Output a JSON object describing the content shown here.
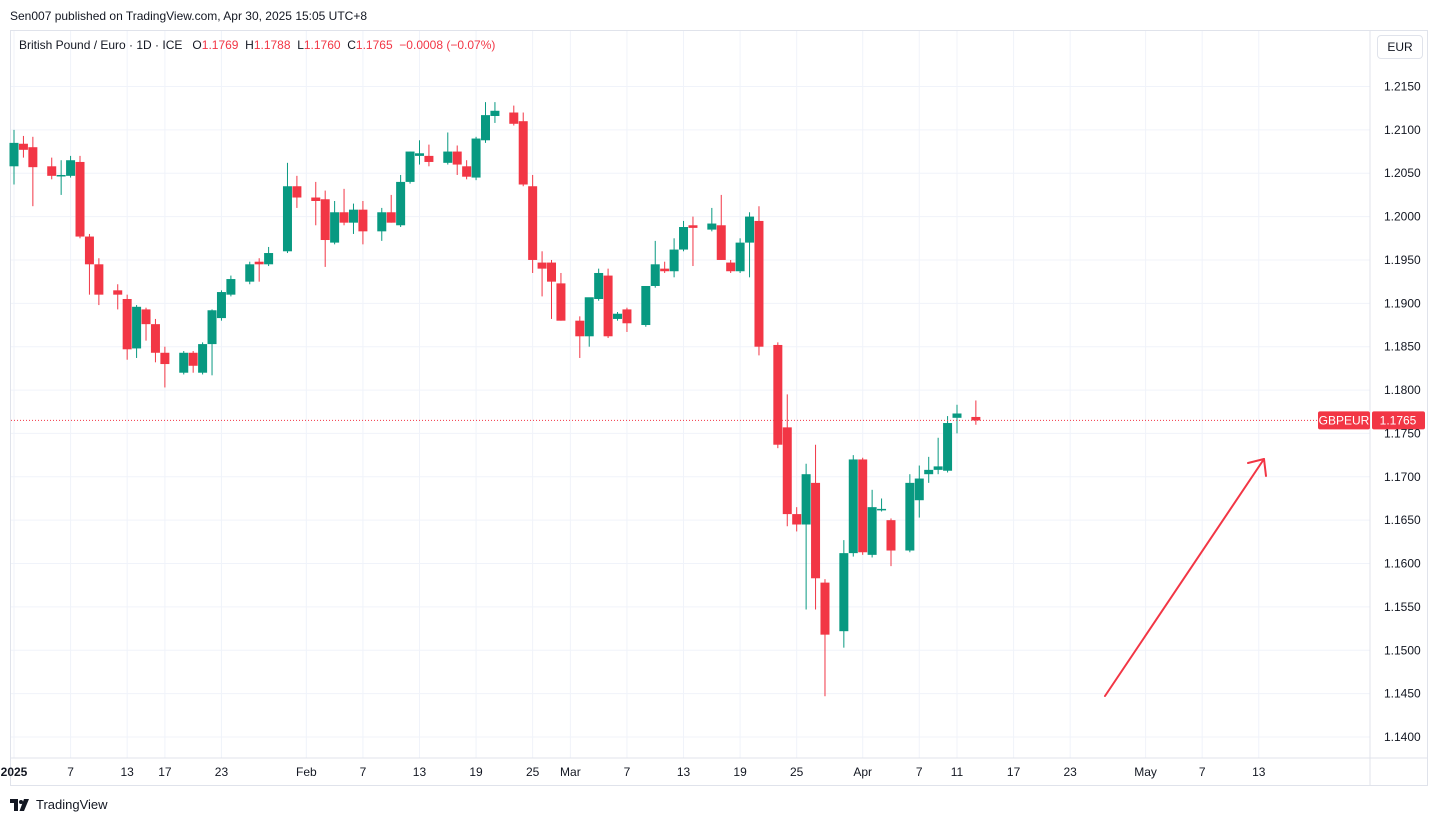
{
  "header": {
    "published": "Sen007 published on TradingView.com, Apr 30, 2025 15:05 UTC+8"
  },
  "legend": {
    "symbol": "British Pound / Euro · 1D · ICE",
    "o_label": "O",
    "o_value": "1.1769",
    "h_label": "H",
    "h_value": "1.1788",
    "l_label": "L",
    "l_value": "1.1760",
    "c_label": "C",
    "c_value": "1.1765",
    "change": "−0.0008 (−0.07%)"
  },
  "currency_button": "EUR",
  "last_price_tag": {
    "symbol": "GBPEUR",
    "price": "1.1765"
  },
  "footer": {
    "brand": "TradingView",
    "logo_icon": "tradingview-logo-icon"
  },
  "colors": {
    "up": "#089981",
    "down": "#f23645",
    "grid": "#f0f3fa",
    "arrow": "#f23645"
  },
  "chart_data": {
    "type": "candlestick",
    "ylim": [
      1.1375,
      1.218
    ],
    "y_ticks": [
      "1.2150",
      "1.2100",
      "1.2050",
      "1.2000",
      "1.1950",
      "1.1900",
      "1.1850",
      "1.1800",
      "1.1750",
      "1.1700",
      "1.1650",
      "1.1600",
      "1.1550",
      "1.1500",
      "1.1450",
      "1.1400"
    ],
    "x_ticks": [
      {
        "label": "2025",
        "date": "2025-01-01",
        "bold": true
      },
      {
        "label": "7",
        "date": "2025-01-07"
      },
      {
        "label": "13",
        "date": "2025-01-13"
      },
      {
        "label": "17",
        "date": "2025-01-17"
      },
      {
        "label": "23",
        "date": "2025-01-23"
      },
      {
        "label": "Feb",
        "date": "2025-02-01"
      },
      {
        "label": "7",
        "date": "2025-02-07"
      },
      {
        "label": "13",
        "date": "2025-02-13"
      },
      {
        "label": "19",
        "date": "2025-02-19"
      },
      {
        "label": "25",
        "date": "2025-02-25"
      },
      {
        "label": "Mar",
        "date": "2025-03-01"
      },
      {
        "label": "7",
        "date": "2025-03-07"
      },
      {
        "label": "13",
        "date": "2025-03-13"
      },
      {
        "label": "19",
        "date": "2025-03-19"
      },
      {
        "label": "25",
        "date": "2025-03-25"
      },
      {
        "label": "Apr",
        "date": "2025-04-01"
      },
      {
        "label": "7",
        "date": "2025-04-07"
      },
      {
        "label": "11",
        "date": "2025-04-11"
      },
      {
        "label": "17",
        "date": "2025-04-17"
      },
      {
        "label": "23",
        "date": "2025-04-23"
      },
      {
        "label": "May",
        "date": "2025-05-01"
      },
      {
        "label": "7",
        "date": "2025-05-07"
      },
      {
        "label": "13",
        "date": "2025-05-13"
      }
    ],
    "last_close": 1.1765,
    "candles": [
      {
        "d": "2025-01-01",
        "o": 1.2058,
        "h": 1.21,
        "l": 1.2037,
        "c": 1.2085
      },
      {
        "d": "2025-01-02",
        "o": 1.2084,
        "h": 1.2093,
        "l": 1.2068,
        "c": 1.2077
      },
      {
        "d": "2025-01-03",
        "o": 1.208,
        "h": 1.2092,
        "l": 1.2012,
        "c": 1.2057
      },
      {
        "d": "2025-01-05",
        "o": 1.2058,
        "h": 1.2068,
        "l": 1.2043,
        "c": 1.2047
      },
      {
        "d": "2025-01-06",
        "o": 1.2048,
        "h": 1.2065,
        "l": 1.2025,
        "c": 1.2048
      },
      {
        "d": "2025-01-07",
        "o": 1.2047,
        "h": 1.207,
        "l": 1.2045,
        "c": 1.2065
      },
      {
        "d": "2025-01-08",
        "o": 1.2063,
        "h": 1.207,
        "l": 1.1975,
        "c": 1.1977
      },
      {
        "d": "2025-01-09",
        "o": 1.1977,
        "h": 1.198,
        "l": 1.191,
        "c": 1.1945
      },
      {
        "d": "2025-01-10",
        "o": 1.1945,
        "h": 1.1952,
        "l": 1.1898,
        "c": 1.191
      },
      {
        "d": "2025-01-12",
        "o": 1.1915,
        "h": 1.1922,
        "l": 1.1893,
        "c": 1.191
      },
      {
        "d": "2025-01-13",
        "o": 1.1905,
        "h": 1.191,
        "l": 1.1835,
        "c": 1.1847
      },
      {
        "d": "2025-01-14",
        "o": 1.1848,
        "h": 1.1898,
        "l": 1.1837,
        "c": 1.1896
      },
      {
        "d": "2025-01-15",
        "o": 1.1893,
        "h": 1.1895,
        "l": 1.1857,
        "c": 1.1876
      },
      {
        "d": "2025-01-16",
        "o": 1.1876,
        "h": 1.1882,
        "l": 1.1832,
        "c": 1.1843
      },
      {
        "d": "2025-01-17",
        "o": 1.1843,
        "h": 1.185,
        "l": 1.1803,
        "c": 1.183
      },
      {
        "d": "2025-01-19",
        "o": 1.182,
        "h": 1.1845,
        "l": 1.1818,
        "c": 1.1843
      },
      {
        "d": "2025-01-20",
        "o": 1.1843,
        "h": 1.1845,
        "l": 1.182,
        "c": 1.1828
      },
      {
        "d": "2025-01-21",
        "o": 1.182,
        "h": 1.1855,
        "l": 1.1818,
        "c": 1.1853
      },
      {
        "d": "2025-01-22",
        "o": 1.1853,
        "h": 1.1893,
        "l": 1.1817,
        "c": 1.1892
      },
      {
        "d": "2025-01-23",
        "o": 1.1883,
        "h": 1.1915,
        "l": 1.188,
        "c": 1.1913
      },
      {
        "d": "2025-01-24",
        "o": 1.191,
        "h": 1.1932,
        "l": 1.1908,
        "c": 1.1928
      },
      {
        "d": "2025-01-26",
        "o": 1.1925,
        "h": 1.1948,
        "l": 1.1922,
        "c": 1.1945
      },
      {
        "d": "2025-01-27",
        "o": 1.1948,
        "h": 1.1952,
        "l": 1.1925,
        "c": 1.1945
      },
      {
        "d": "2025-01-28",
        "o": 1.1945,
        "h": 1.1965,
        "l": 1.1943,
        "c": 1.1958
      },
      {
        "d": "2025-01-30",
        "o": 1.196,
        "h": 1.2062,
        "l": 1.1958,
        "c": 1.2035
      },
      {
        "d": "2025-01-31",
        "o": 1.2035,
        "h": 1.2047,
        "l": 1.201,
        "c": 1.2022
      },
      {
        "d": "2025-02-02",
        "o": 1.2022,
        "h": 1.204,
        "l": 1.199,
        "c": 1.2018
      },
      {
        "d": "2025-02-03",
        "o": 1.202,
        "h": 1.203,
        "l": 1.1942,
        "c": 1.1973
      },
      {
        "d": "2025-02-04",
        "o": 1.197,
        "h": 1.2018,
        "l": 1.1968,
        "c": 1.2005
      },
      {
        "d": "2025-02-05",
        "o": 1.2005,
        "h": 1.2032,
        "l": 1.199,
        "c": 1.1993
      },
      {
        "d": "2025-02-06",
        "o": 1.1993,
        "h": 1.2015,
        "l": 1.198,
        "c": 1.2008
      },
      {
        "d": "2025-02-07",
        "o": 1.2008,
        "h": 1.2018,
        "l": 1.1968,
        "c": 1.1983
      },
      {
        "d": "2025-02-09",
        "o": 1.1983,
        "h": 1.201,
        "l": 1.1972,
        "c": 1.2005
      },
      {
        "d": "2025-02-10",
        "o": 1.2005,
        "h": 1.2025,
        "l": 1.1993,
        "c": 1.1993
      },
      {
        "d": "2025-02-11",
        "o": 1.199,
        "h": 1.2048,
        "l": 1.1988,
        "c": 1.204
      },
      {
        "d": "2025-02-12",
        "o": 1.204,
        "h": 1.2075,
        "l": 1.2038,
        "c": 1.2075
      },
      {
        "d": "2025-02-13",
        "o": 1.207,
        "h": 1.2088,
        "l": 1.206,
        "c": 1.2073
      },
      {
        "d": "2025-02-14",
        "o": 1.207,
        "h": 1.2083,
        "l": 1.2058,
        "c": 1.2063
      },
      {
        "d": "2025-02-16",
        "o": 1.2062,
        "h": 1.2097,
        "l": 1.206,
        "c": 1.2075
      },
      {
        "d": "2025-02-17",
        "o": 1.2075,
        "h": 1.2082,
        "l": 1.2048,
        "c": 1.206
      },
      {
        "d": "2025-02-18",
        "o": 1.2058,
        "h": 1.2065,
        "l": 1.2043,
        "c": 1.2046
      },
      {
        "d": "2025-02-19",
        "o": 1.2045,
        "h": 1.2092,
        "l": 1.2042,
        "c": 1.209
      },
      {
        "d": "2025-02-20",
        "o": 1.2088,
        "h": 1.2132,
        "l": 1.2085,
        "c": 1.2117
      },
      {
        "d": "2025-02-21",
        "o": 1.2116,
        "h": 1.2132,
        "l": 1.2108,
        "c": 1.2122
      },
      {
        "d": "2025-02-23",
        "o": 1.212,
        "h": 1.2128,
        "l": 1.2105,
        "c": 1.2107
      },
      {
        "d": "2025-02-24",
        "o": 1.211,
        "h": 1.212,
        "l": 1.2035,
        "c": 1.2037
      },
      {
        "d": "2025-02-25",
        "o": 1.2035,
        "h": 1.2048,
        "l": 1.1935,
        "c": 1.195
      },
      {
        "d": "2025-02-26",
        "o": 1.1947,
        "h": 1.196,
        "l": 1.1908,
        "c": 1.194
      },
      {
        "d": "2025-02-27",
        "o": 1.1947,
        "h": 1.195,
        "l": 1.1882,
        "c": 1.1925
      },
      {
        "d": "2025-02-28",
        "o": 1.1923,
        "h": 1.1935,
        "l": 1.188,
        "c": 1.188
      },
      {
        "d": "2025-03-02",
        "o": 1.188,
        "h": 1.1885,
        "l": 1.1837,
        "c": 1.1862
      },
      {
        "d": "2025-03-03",
        "o": 1.1862,
        "h": 1.1903,
        "l": 1.185,
        "c": 1.1907
      },
      {
        "d": "2025-03-04",
        "o": 1.1905,
        "h": 1.194,
        "l": 1.1903,
        "c": 1.1935
      },
      {
        "d": "2025-03-05",
        "o": 1.1932,
        "h": 1.194,
        "l": 1.186,
        "c": 1.1862
      },
      {
        "d": "2025-03-06",
        "o": 1.1882,
        "h": 1.189,
        "l": 1.188,
        "c": 1.1888
      },
      {
        "d": "2025-03-07",
        "o": 1.1893,
        "h": 1.1895,
        "l": 1.1867,
        "c": 1.1877
      },
      {
        "d": "2025-03-09",
        "o": 1.1875,
        "h": 1.192,
        "l": 1.1873,
        "c": 1.192
      },
      {
        "d": "2025-03-10",
        "o": 1.192,
        "h": 1.1972,
        "l": 1.1918,
        "c": 1.1945
      },
      {
        "d": "2025-03-11",
        "o": 1.194,
        "h": 1.1948,
        "l": 1.1935,
        "c": 1.1937
      },
      {
        "d": "2025-03-12",
        "o": 1.1937,
        "h": 1.1975,
        "l": 1.193,
        "c": 1.1962
      },
      {
        "d": "2025-03-13",
        "o": 1.1962,
        "h": 1.1995,
        "l": 1.196,
        "c": 1.1988
      },
      {
        "d": "2025-03-14",
        "o": 1.199,
        "h": 1.2,
        "l": 1.1943,
        "c": 1.1987
      },
      {
        "d": "2025-03-16",
        "o": 1.1985,
        "h": 1.201,
        "l": 1.1983,
        "c": 1.1992
      },
      {
        "d": "2025-03-17",
        "o": 1.199,
        "h": 1.2025,
        "l": 1.195,
        "c": 1.195
      },
      {
        "d": "2025-03-18",
        "o": 1.1947,
        "h": 1.195,
        "l": 1.1935,
        "c": 1.1937
      },
      {
        "d": "2025-03-19",
        "o": 1.1937,
        "h": 1.1975,
        "l": 1.1935,
        "c": 1.197
      },
      {
        "d": "2025-03-20",
        "o": 1.197,
        "h": 1.2005,
        "l": 1.193,
        "c": 1.2
      },
      {
        "d": "2025-03-21",
        "o": 1.1995,
        "h": 1.2012,
        "l": 1.184,
        "c": 1.185
      },
      {
        "d": "2025-03-23",
        "o": 1.1852,
        "h": 1.1855,
        "l": 1.1733,
        "c": 1.1737
      },
      {
        "d": "2025-03-24",
        "o": 1.1757,
        "h": 1.1795,
        "l": 1.1643,
        "c": 1.1657
      },
      {
        "d": "2025-03-25",
        "o": 1.1657,
        "h": 1.1665,
        "l": 1.1637,
        "c": 1.1645
      },
      {
        "d": "2025-03-26",
        "o": 1.1645,
        "h": 1.1715,
        "l": 1.1547,
        "c": 1.1703
      },
      {
        "d": "2025-03-27",
        "o": 1.1693,
        "h": 1.1737,
        "l": 1.1547,
        "c": 1.1583
      },
      {
        "d": "2025-03-28",
        "o": 1.1578,
        "h": 1.1582,
        "l": 1.1447,
        "c": 1.1518
      },
      {
        "d": "2025-03-30",
        "o": 1.1522,
        "h": 1.1627,
        "l": 1.1503,
        "c": 1.1612
      },
      {
        "d": "2025-03-31",
        "o": 1.1612,
        "h": 1.1725,
        "l": 1.1608,
        "c": 1.172
      },
      {
        "d": "2025-04-01",
        "o": 1.172,
        "h": 1.1722,
        "l": 1.161,
        "c": 1.1613
      },
      {
        "d": "2025-04-02",
        "o": 1.161,
        "h": 1.1685,
        "l": 1.1607,
        "c": 1.1665
      },
      {
        "d": "2025-04-03",
        "o": 1.1663,
        "h": 1.1675,
        "l": 1.166,
        "c": 1.1663
      },
      {
        "d": "2025-04-04",
        "o": 1.165,
        "h": 1.1652,
        "l": 1.1597,
        "c": 1.1615
      },
      {
        "d": "2025-04-06",
        "o": 1.1615,
        "h": 1.1703,
        "l": 1.1613,
        "c": 1.1693
      },
      {
        "d": "2025-04-07",
        "o": 1.1673,
        "h": 1.1713,
        "l": 1.1653,
        "c": 1.1698
      },
      {
        "d": "2025-04-08",
        "o": 1.1703,
        "h": 1.1723,
        "l": 1.1693,
        "c": 1.1708
      },
      {
        "d": "2025-04-09",
        "o": 1.1708,
        "h": 1.1745,
        "l": 1.1703,
        "c": 1.1712
      },
      {
        "d": "2025-04-10",
        "o": 1.1707,
        "h": 1.177,
        "l": 1.1705,
        "c": 1.1762
      },
      {
        "d": "2025-04-11",
        "o": 1.1768,
        "h": 1.1783,
        "l": 1.175,
        "c": 1.1773
      },
      {
        "d": "2025-04-13",
        "o": 1.1769,
        "h": 1.1788,
        "l": 1.176,
        "c": 1.1765
      }
    ]
  }
}
